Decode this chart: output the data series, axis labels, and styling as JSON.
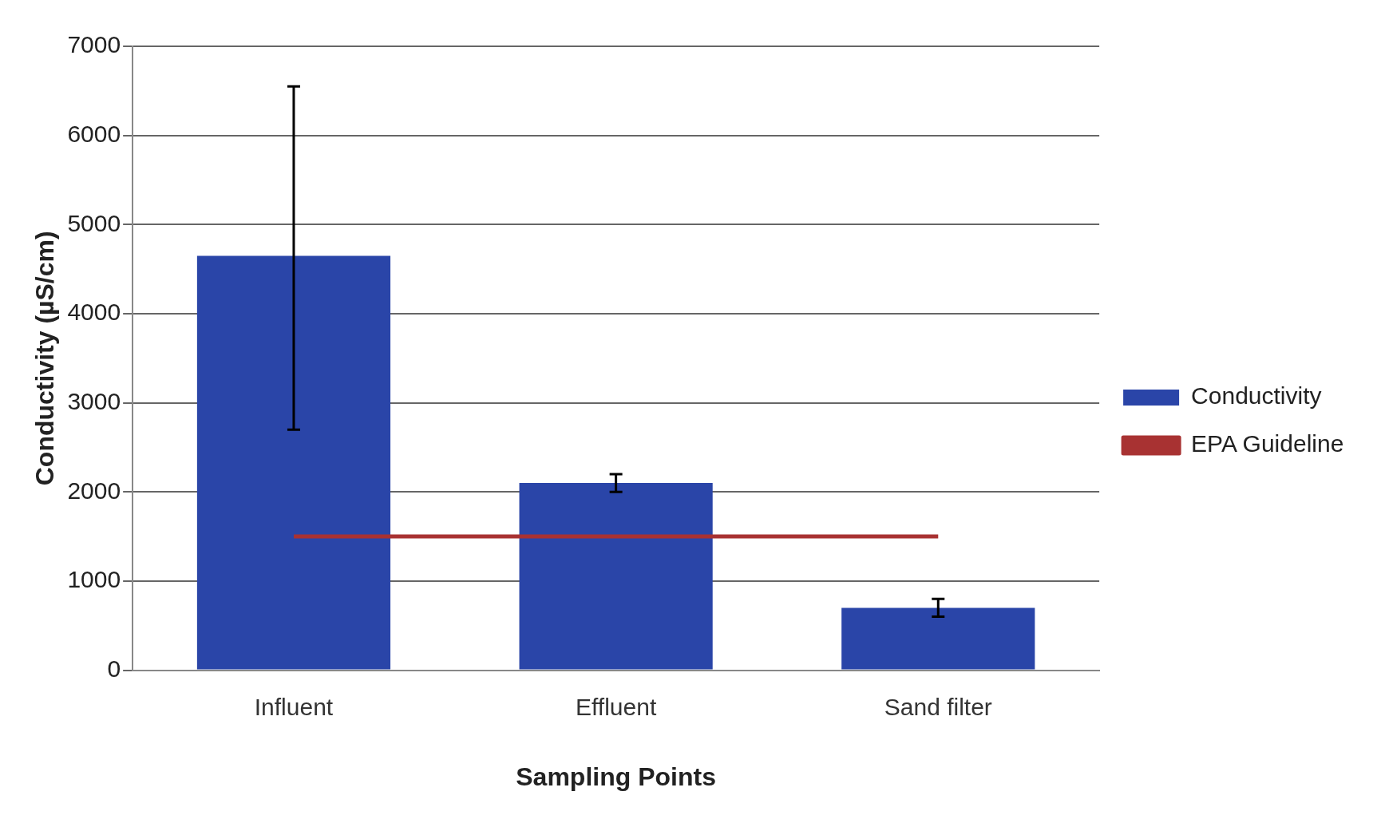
{
  "chart_data": {
    "type": "bar",
    "xlabel": "Sampling Points",
    "ylabel": "Conductivity (µS/cm)",
    "categories": [
      "Influent",
      "Effluent",
      "Sand filter"
    ],
    "series": [
      {
        "name": "Conductivity",
        "color": "#2a45a8",
        "values": [
          4650,
          2100,
          700
        ],
        "errors": [
          [
            2700,
            6550
          ],
          [
            2000,
            2200
          ],
          [
            600,
            800
          ]
        ]
      },
      {
        "name": "EPA Guideline",
        "type": "line",
        "color": "#a83232",
        "values": [
          1500,
          1500,
          1500
        ]
      }
    ],
    "ylim": [
      0,
      7000
    ],
    "yticks": [
      0,
      1000,
      2000,
      3000,
      4000,
      5000,
      6000,
      7000
    ],
    "grid": "y",
    "legend": "right",
    "marker": "none"
  }
}
